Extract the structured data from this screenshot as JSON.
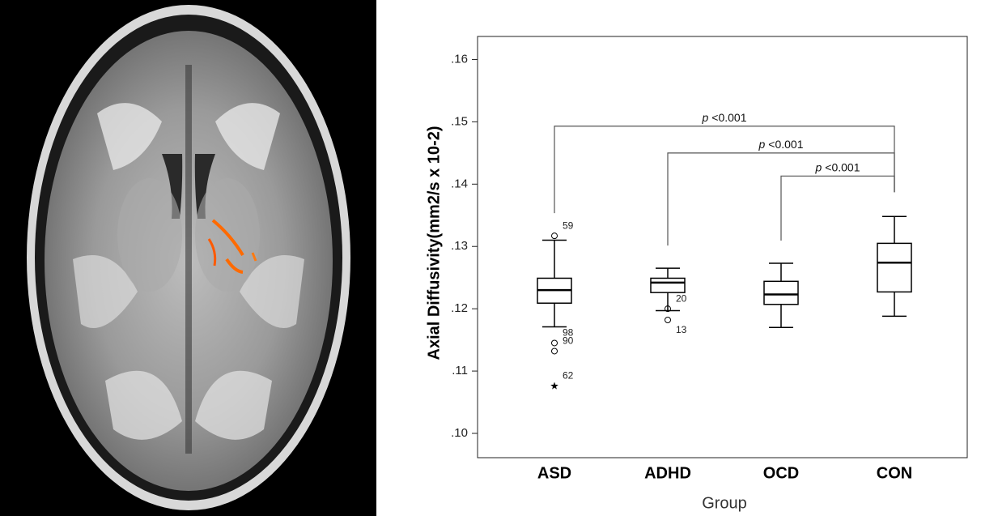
{
  "chart_data": {
    "type": "box",
    "ylabel": "Axial Diffusivity(mm2/s x 10-2)",
    "xlabel": "Group",
    "categories": [
      "ASD",
      "ADHD",
      "OCD",
      "CON"
    ],
    "boxes": [
      {
        "low": 0.1171,
        "q1": 0.1209,
        "median": 0.123,
        "q3": 0.1249,
        "high": 0.131,
        "outliers": [
          {
            "value": 0.1317,
            "label": "59",
            "marker": "circle"
          },
          {
            "value": 0.1145,
            "label": "98",
            "marker": "circle"
          },
          {
            "value": 0.1132,
            "label": "90",
            "marker": "circle"
          },
          {
            "value": 0.1076,
            "label": "62",
            "marker": "star"
          }
        ]
      },
      {
        "low": 0.1197,
        "q1": 0.1226,
        "median": 0.1242,
        "q3": 0.1249,
        "high": 0.1265,
        "outliers": [
          {
            "value": 0.12,
            "label": "20",
            "marker": "circle"
          },
          {
            "value": 0.1182,
            "label": "13",
            "marker": "circle"
          }
        ]
      },
      {
        "low": 0.117,
        "q1": 0.1207,
        "median": 0.1223,
        "q3": 0.1244,
        "high": 0.1273,
        "outliers": []
      },
      {
        "low": 0.1188,
        "q1": 0.1227,
        "median": 0.1274,
        "q3": 0.1305,
        "high": 0.1348,
        "outliers": []
      }
    ],
    "ylim": [
      0.0961,
      0.1637
    ],
    "yticks": [
      {
        "value": 0.1,
        "label": ".10"
      },
      {
        "value": 0.11,
        "label": ".11"
      },
      {
        "value": 0.12,
        "label": ".12"
      },
      {
        "value": 0.13,
        "label": ".13"
      },
      {
        "value": 0.14,
        "label": ".14"
      },
      {
        "value": 0.15,
        "label": ".15"
      },
      {
        "value": 0.16,
        "label": ".16"
      }
    ],
    "comparisons": [
      {
        "between": [
          "ASD",
          "CON"
        ],
        "y": 0.1493,
        "italic": "p",
        "text": "<0.001"
      },
      {
        "between": [
          "ADHD",
          "CON"
        ],
        "y": 0.145,
        "italic": "p",
        "text": "<0.001"
      },
      {
        "between": [
          "OCD",
          "CON"
        ],
        "y": 0.1413,
        "italic": "p",
        "text": "<0.001"
      }
    ]
  }
}
